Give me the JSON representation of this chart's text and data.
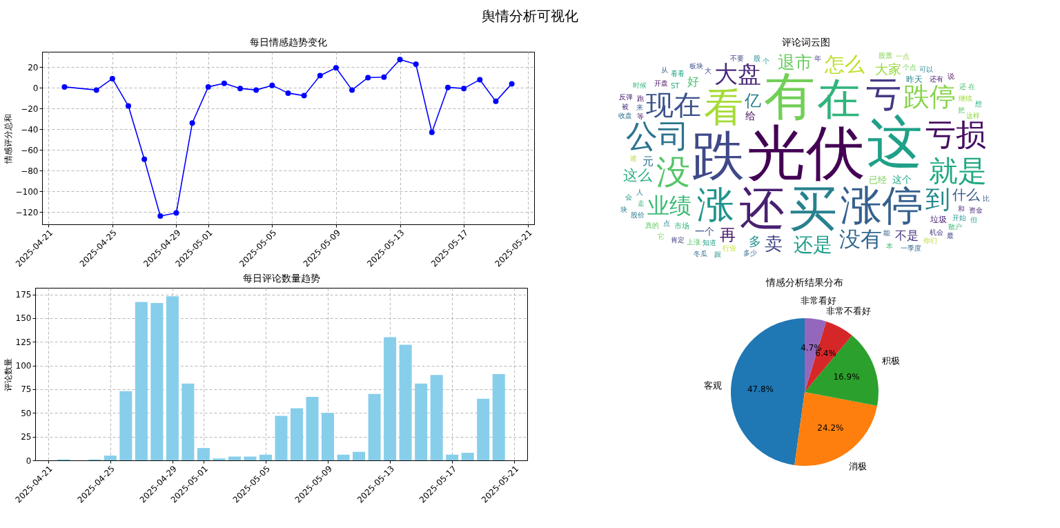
{
  "chart_data": [
    {
      "type": "other",
      "title": "舆情分析可视化"
    },
    {
      "type": "line",
      "title": "每日情感趋势变化",
      "ylabel": "情感评分总和",
      "x": [
        "2025-04-22",
        "2025-04-24",
        "2025-04-25",
        "2025-04-26",
        "2025-04-27",
        "2025-04-28",
        "2025-04-29",
        "2025-04-30",
        "2025-05-01",
        "2025-05-02",
        "2025-05-03",
        "2025-05-04",
        "2025-05-05",
        "2025-05-06",
        "2025-05-07",
        "2025-05-08",
        "2025-05-09",
        "2025-05-10",
        "2025-05-11",
        "2025-05-12",
        "2025-05-13",
        "2025-05-14",
        "2025-05-15",
        "2025-05-16",
        "2025-05-17",
        "2025-05-18",
        "2025-05-19",
        "2025-05-20"
      ],
      "series": [
        {
          "color": "#0000ff",
          "values": [
            1,
            -2,
            9,
            -17.5,
            -69,
            -124,
            -121,
            -34,
            1,
            4.5,
            -0.5,
            -2,
            2.5,
            -5,
            -7.5,
            12,
            19.5,
            -2,
            10,
            10.5,
            27.5,
            23,
            -43,
            0.5,
            -0.5,
            8,
            -13,
            4
          ]
        }
      ],
      "xlim": [
        "2025-04-20T14:24",
        "2025-05-21T09:36"
      ],
      "xticks": [
        "2025-04-21",
        "2025-04-25",
        "2025-04-29",
        "2025-05-01",
        "2025-05-05",
        "2025-05-09",
        "2025-05-13",
        "2025-05-17",
        "2025-05-21"
      ],
      "ylim": [
        -132,
        35
      ],
      "yticks": [
        -120,
        -100,
        -80,
        -60,
        -40,
        -20,
        0,
        20
      ],
      "grid": true,
      "marker": "circle",
      "line_style": "solid"
    },
    {
      "type": "other",
      "title": "评论词云图",
      "annotations": [
        "光伏",
        "这",
        "跌",
        "有",
        "买",
        "还",
        "在",
        "涨停",
        "看",
        "涨",
        "亏",
        "没",
        "公司",
        "亏损",
        "就是",
        "现在",
        "跌停",
        "到",
        "大盘",
        "业绩",
        "没有",
        "怎么",
        "还是",
        "卖",
        "退市",
        "亿",
        "再",
        "这么",
        "什么",
        "大家",
        "多",
        "不是",
        "好",
        "元",
        "给",
        "这个",
        "一个",
        "已经",
        "昨天",
        "垃圾",
        "市场",
        "能",
        "谁",
        "个",
        "年",
        "把",
        "人",
        "等",
        "ST",
        "大",
        "这样",
        "股",
        "和",
        "本",
        "多少",
        "行业",
        "知道",
        "不要",
        "个点",
        "点",
        "还有",
        "走",
        "来",
        "继续",
        "开始",
        "机会",
        "上涨",
        "收盘",
        "开盘",
        "看看",
        "板块",
        "股票",
        "可以",
        "资金",
        "散户",
        "一季度",
        "你们",
        "会",
        "肯定",
        "真的",
        "股价",
        "跑",
        "想",
        "比",
        "一点",
        "跟",
        "被",
        "还 在",
        "冬瓜",
        "说",
        "但",
        "最",
        "它",
        "块",
        "反弹",
        "时候",
        "从"
      ]
    },
    {
      "type": "bar",
      "title": "每日评论数量趋势",
      "ylabel": "评论数量",
      "x": [
        "2025-04-22",
        "2025-04-24",
        "2025-04-25",
        "2025-04-26",
        "2025-04-27",
        "2025-04-28",
        "2025-04-29",
        "2025-04-30",
        "2025-05-01",
        "2025-05-02",
        "2025-05-03",
        "2025-05-04",
        "2025-05-05",
        "2025-05-06",
        "2025-05-07",
        "2025-05-08",
        "2025-05-09",
        "2025-05-10",
        "2025-05-11",
        "2025-05-12",
        "2025-05-13",
        "2025-05-14",
        "2025-05-15",
        "2025-05-16",
        "2025-05-17",
        "2025-05-18",
        "2025-05-19",
        "2025-05-20"
      ],
      "values": [
        1,
        1,
        5,
        73,
        167,
        166,
        173,
        81,
        13,
        2,
        4,
        4,
        6,
        47,
        55,
        67,
        50,
        6,
        9,
        70,
        130,
        122,
        81,
        90,
        6,
        8,
        65,
        91
      ],
      "color": "#87ceeb",
      "xlim": [
        "2025-04-20T04:00",
        "2025-05-21T20:00"
      ],
      "xticks": [
        "2025-04-21",
        "2025-04-25",
        "2025-04-29",
        "2025-05-01",
        "2025-05-05",
        "2025-05-09",
        "2025-05-13",
        "2025-05-17",
        "2025-05-21"
      ],
      "ylim": [
        0,
        182
      ],
      "yticks": [
        0,
        25,
        50,
        75,
        100,
        125,
        150,
        175
      ],
      "grid": true
    },
    {
      "type": "pie",
      "title": "情感分析结果分布",
      "categories": [
        "客观",
        "消极",
        "积极",
        "非常不看好",
        "非常看好"
      ],
      "values": [
        47.8,
        24.2,
        16.9,
        6.4,
        4.7
      ],
      "colors": [
        "#1f77b4",
        "#ff7f0e",
        "#2ca02c",
        "#d62728",
        "#9467bd"
      ],
      "value_labels": [
        "47.8%",
        "24.2%",
        "16.9%",
        "6.4%",
        "4.7%"
      ]
    }
  ]
}
